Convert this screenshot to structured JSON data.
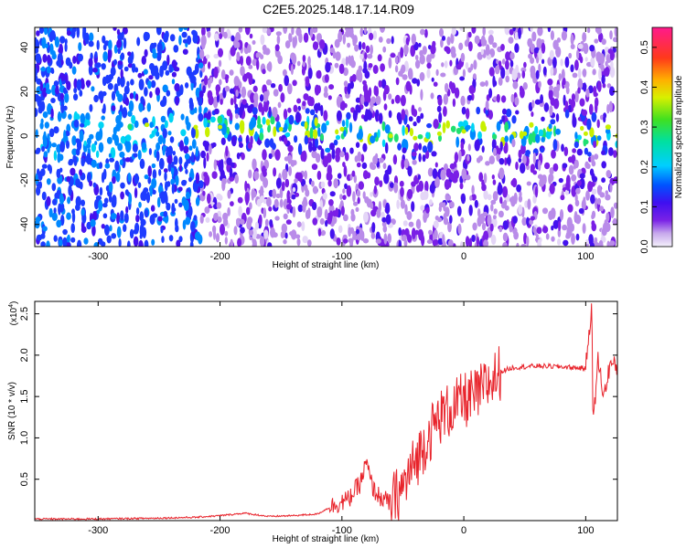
{
  "title": "C2E5.2025.148.17.14.R09",
  "chart_data": [
    {
      "type": "heatmap",
      "xlabel": "Height of straight line (km)",
      "ylabel": "Frequency (Hz)",
      "xlim": [
        -352,
        126
      ],
      "ylim": [
        -50,
        49
      ],
      "x_ticks": [
        -300,
        -200,
        -100,
        0,
        100
      ],
      "y_ticks": [
        -40,
        -20,
        0,
        20,
        40
      ],
      "colorbar": {
        "label": "Normalized spectral amplitude",
        "range": [
          0.0,
          0.55
        ],
        "ticks": [
          "0.0",
          "0.1",
          "0.2",
          "0.3",
          "0.4",
          "0.5"
        ]
      },
      "ridge": [
        {
          "x": -260,
          "y": 5
        },
        {
          "x": -220,
          "y": 4
        },
        {
          "x": -200,
          "y": 4
        },
        {
          "x": -150,
          "y": 3
        },
        {
          "x": -100,
          "y": 3
        },
        {
          "x": -60,
          "y": 0
        },
        {
          "x": -40,
          "y": -1
        },
        {
          "x": -20,
          "y": 1
        },
        {
          "x": 0,
          "y": 2
        },
        {
          "x": 50,
          "y": 1
        },
        {
          "x": 100,
          "y": 1
        },
        {
          "x": 126,
          "y": 0
        }
      ],
      "peak_amplitude": 0.4
    },
    {
      "type": "line",
      "xlabel": "Height of straight line (km)",
      "ylabel": "SNR (10 * v/v)",
      "y_multiplier": "(x10",
      "y_multiplier_exp": "4",
      "y_multiplier_close": ")",
      "xlim": [
        -352,
        126
      ],
      "ylim": [
        0,
        2.65
      ],
      "x_ticks": [
        -300,
        -200,
        -100,
        0,
        100
      ],
      "y_ticks": [
        "0.5",
        "1.0",
        "1.5",
        "2.0",
        "2.5"
      ],
      "color": "#e8232b",
      "series": [
        {
          "points": [
            [
              -352,
              0.02
            ],
            [
              -300,
              0.02
            ],
            [
              -250,
              0.03
            ],
            [
              -220,
              0.04
            ],
            [
              -200,
              0.06
            ],
            [
              -180,
              0.09
            ],
            [
              -160,
              0.05
            ],
            [
              -140,
              0.06
            ],
            [
              -120,
              0.08
            ],
            [
              -105,
              0.2
            ],
            [
              -95,
              0.25
            ],
            [
              -85,
              0.45
            ],
            [
              -80,
              0.7
            ],
            [
              -75,
              0.4
            ],
            [
              -70,
              0.3
            ],
            [
              -60,
              0.2
            ],
            [
              -50,
              0.4
            ],
            [
              -40,
              0.7
            ],
            [
              -30,
              1.0
            ],
            [
              -20,
              1.25
            ],
            [
              -10,
              1.35
            ],
            [
              0,
              1.45
            ],
            [
              10,
              1.5
            ],
            [
              20,
              1.65
            ],
            [
              30,
              1.8
            ],
            [
              40,
              1.85
            ],
            [
              60,
              1.87
            ],
            [
              80,
              1.86
            ],
            [
              100,
              1.84
            ],
            [
              105,
              2.65
            ],
            [
              106,
              1.1
            ],
            [
              110,
              1.95
            ],
            [
              115,
              1.5
            ],
            [
              120,
              1.9
            ],
            [
              126,
              1.85
            ]
          ]
        }
      ]
    }
  ]
}
